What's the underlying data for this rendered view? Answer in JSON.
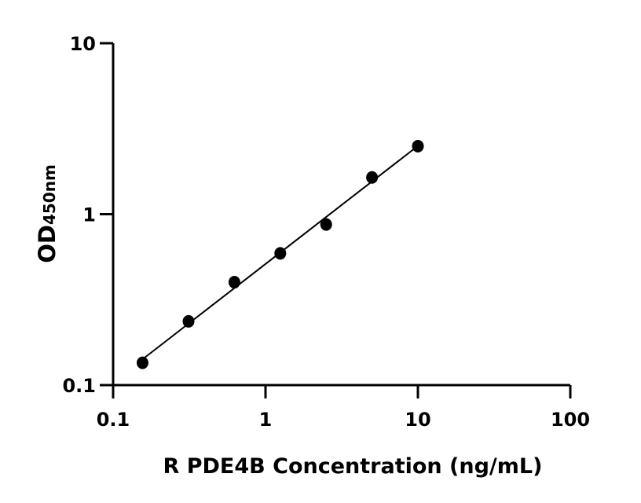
{
  "chart_data": {
    "type": "scatter",
    "title": "",
    "xlabel": "R PDE4B Concentration (ng/mL)",
    "ylabel_main": "OD",
    "ylabel_sub": "450nm",
    "x_scale": "log",
    "y_scale": "log",
    "xlim": [
      0.1,
      100
    ],
    "ylim": [
      0.1,
      10
    ],
    "x_ticks": [
      0.1,
      1,
      10,
      100
    ],
    "x_tick_labels": [
      "0.1",
      "1",
      "10",
      "100"
    ],
    "y_ticks": [
      0.1,
      1,
      10
    ],
    "y_tick_labels": [
      "0.1",
      "1",
      "10"
    ],
    "grid": false,
    "fit_line": "linear regression (log-log)",
    "series": [
      {
        "x": [
          0.156,
          0.3125,
          0.625,
          1.25,
          2.5,
          5,
          10
        ],
        "y": [
          0.135,
          0.236,
          0.4,
          0.59,
          0.87,
          1.64,
          2.5
        ]
      }
    ],
    "colors": {
      "marker": "#000000",
      "line": "#000000",
      "axis": "#000000"
    }
  }
}
